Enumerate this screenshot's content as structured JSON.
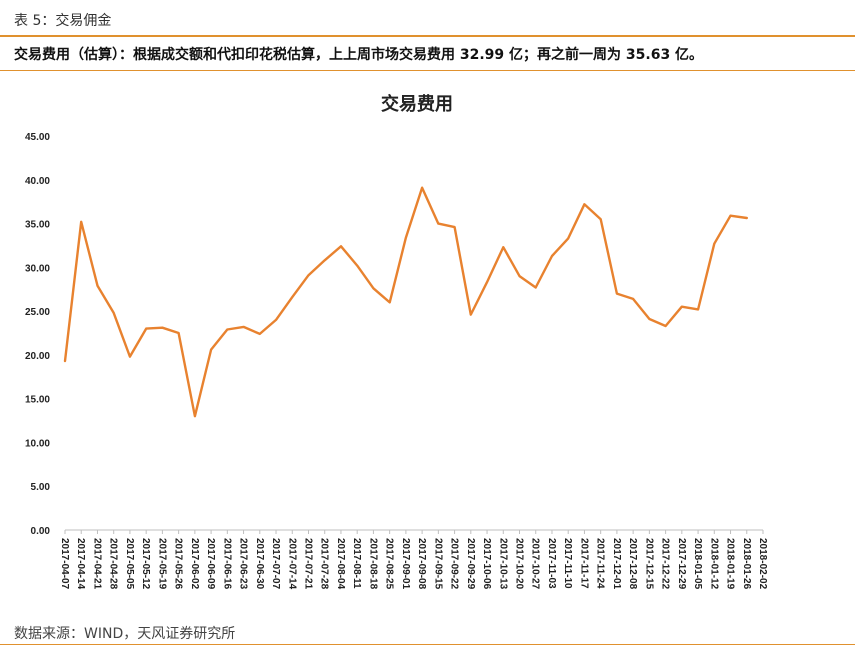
{
  "header": {
    "table_title": "表 5：交易佣金",
    "summary": "交易费用（估算）：根据成交额和代扣印花税估算，上上周市场交易费用 32.99 亿；再之前一周为 35.63 亿。"
  },
  "footer": {
    "source": "数据来源：WIND，天风证券研究所"
  },
  "colors": {
    "accent": "#e0912e",
    "line": "#e8822f",
    "axis": "#bfbfbf"
  },
  "chart_data": {
    "type": "line",
    "title": "交易费用",
    "xlabel": "",
    "ylabel": "",
    "ylim": [
      0,
      45
    ],
    "yticks": [
      "0.00",
      "5.00",
      "10.00",
      "15.00",
      "20.00",
      "25.00",
      "30.00",
      "35.00",
      "40.00",
      "45.00"
    ],
    "grid": false,
    "categories": [
      "2017-04-07",
      "2017-04-14",
      "2017-04-21",
      "2017-04-28",
      "2017-05-05",
      "2017-05-12",
      "2017-05-19",
      "2017-05-26",
      "2017-06-02",
      "2017-06-09",
      "2017-06-16",
      "2017-06-23",
      "2017-06-30",
      "2017-07-07",
      "2017-07-14",
      "2017-07-21",
      "2017-07-28",
      "2017-08-04",
      "2017-08-11",
      "2017-08-18",
      "2017-08-25",
      "2017-09-01",
      "2017-09-08",
      "2017-09-15",
      "2017-09-22",
      "2017-09-29",
      "2017-10-06",
      "2017-10-13",
      "2017-10-20",
      "2017-10-27",
      "2017-11-03",
      "2017-11-10",
      "2017-11-17",
      "2017-11-24",
      "2017-12-01",
      "2017-12-08",
      "2017-12-15",
      "2017-12-22",
      "2017-12-29",
      "2018-01-05",
      "2018-01-12",
      "2018-01-19",
      "2018-01-26",
      "2018-02-02"
    ],
    "values": [
      19.3,
      35.2,
      27.9,
      24.8,
      19.8,
      23.0,
      23.1,
      22.5,
      13.0,
      20.6,
      22.9,
      23.2,
      22.4,
      24.0,
      26.6,
      29.1,
      30.8,
      32.4,
      30.2,
      27.6,
      26.0,
      33.4,
      39.1,
      35.0,
      34.6,
      24.6,
      28.3,
      32.3,
      29.0,
      27.7,
      31.3,
      33.3,
      37.2,
      35.5,
      27.0,
      26.4,
      24.1,
      23.3,
      25.5,
      25.2,
      32.7,
      35.9,
      35.63,
      null
    ]
  }
}
